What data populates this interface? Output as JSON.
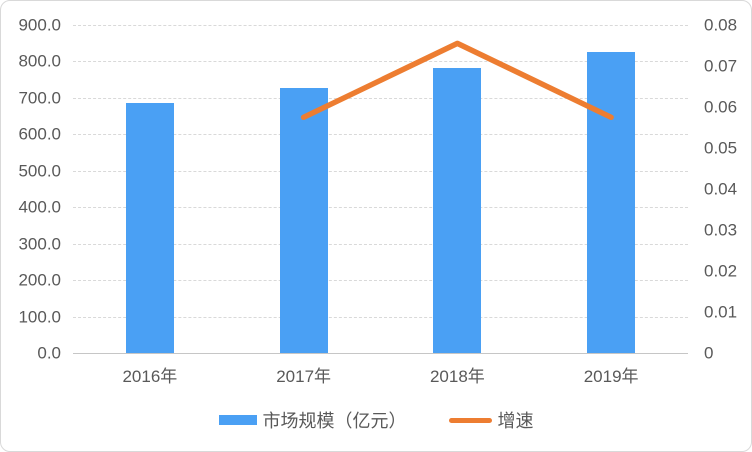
{
  "chart_data": {
    "type": "combo",
    "title": "",
    "categories": [
      "2016年",
      "2017年",
      "2018年",
      "2019年"
    ],
    "series": [
      {
        "name": "市场规模（亿元）",
        "type": "bar",
        "axis": "left",
        "color": "#4aa0f4",
        "values": [
          687,
          727,
          782,
          827
        ]
      },
      {
        "name": "增速",
        "type": "line",
        "axis": "right",
        "color": "#ed7d31",
        "values": [
          null,
          0.0575,
          0.0755,
          0.0575
        ]
      }
    ],
    "left_axis": {
      "min": 0,
      "max": 900,
      "step": 100,
      "tick_labels": [
        "900.0",
        "800.0",
        "700.0",
        "600.0",
        "500.0",
        "400.0",
        "300.0",
        "200.0",
        "100.0",
        "0.0"
      ]
    },
    "right_axis": {
      "min": 0,
      "max": 0.08,
      "step": 0.01,
      "tick_labels": [
        "0.08",
        "0.07",
        "0.06",
        "0.05",
        "0.04",
        "0.03",
        "0.02",
        "0.01",
        "0"
      ]
    },
    "grid": true,
    "grid_style": "dashed",
    "grid_color": "#d9d9d9",
    "axis_line_color": "#c6c6c6",
    "text_color": "#595959",
    "legend_position": "bottom"
  }
}
